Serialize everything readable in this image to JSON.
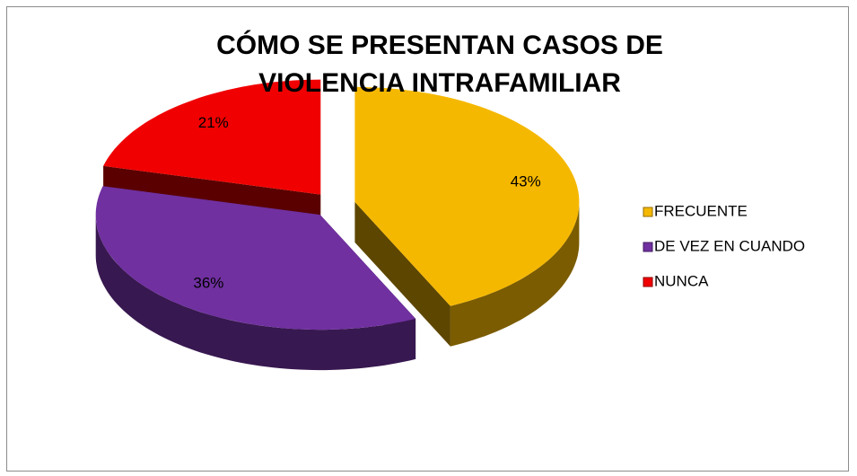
{
  "chart_data": {
    "type": "pie3d",
    "title": "CÓMO SE PRESENTAN CASOS DE VIOLENCIA INTRAFAMILIAR",
    "categories": [
      "FRECUENTE",
      "DE VEZ EN CUANDO",
      "NUNCA"
    ],
    "values": [
      43,
      36,
      21
    ],
    "value_labels": [
      "43%",
      "36%",
      "21%"
    ],
    "colors": [
      "#f5b800",
      "#7030a0",
      "#f00000"
    ],
    "legend": "right"
  }
}
